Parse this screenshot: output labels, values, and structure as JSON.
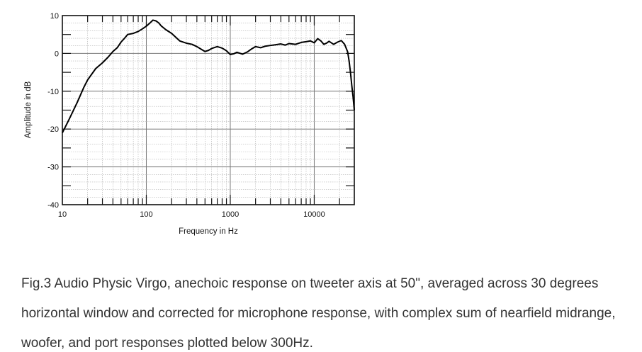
{
  "chart_data": {
    "type": "line",
    "xlabel": "Frequency in Hz",
    "ylabel": "Amplitude in dB",
    "x_scale": "log",
    "xlim": [
      10,
      30000
    ],
    "ylim": [
      -40,
      10
    ],
    "x_ticks": [
      {
        "value": 10,
        "label": "10"
      },
      {
        "value": 100,
        "label": "100"
      },
      {
        "value": 1000,
        "label": "1000"
      },
      {
        "value": 10000,
        "label": "10000"
      }
    ],
    "y_ticks": [
      {
        "value": 10,
        "label": "10"
      },
      {
        "value": 0,
        "label": "0"
      },
      {
        "value": -10,
        "label": "-10"
      },
      {
        "value": -20,
        "label": "-20"
      },
      {
        "value": -30,
        "label": "-30"
      },
      {
        "value": -40,
        "label": "-40"
      }
    ],
    "grid": true,
    "series": [
      {
        "x": [
          10,
          12,
          15,
          18,
          20,
          25,
          30,
          35,
          40,
          45,
          50,
          55,
          60,
          70,
          80,
          90,
          100,
          110,
          120,
          130,
          140,
          150,
          170,
          200,
          250,
          300,
          350,
          400,
          450,
          500,
          550,
          600,
          700,
          800,
          900,
          1000,
          1100,
          1200,
          1400,
          1600,
          1800,
          2000,
          2300,
          2600,
          3000,
          3500,
          4000,
          4500,
          5000,
          6000,
          7000,
          8000,
          9000,
          10000,
          11000,
          12000,
          13000,
          14000,
          15000,
          17000,
          19000,
          21000,
          23000,
          25000,
          26000,
          27000,
          28000,
          29000,
          30000
        ],
        "y": [
          -21,
          -17.5,
          -13,
          -9,
          -7,
          -4,
          -2.5,
          -1,
          0.5,
          1.5,
          3,
          4,
          5,
          5.3,
          5.8,
          6.5,
          7.2,
          8,
          8.8,
          8.6,
          8.1,
          7.3,
          6.3,
          5.3,
          3.3,
          2.7,
          2.4,
          1.8,
          1.1,
          0.5,
          0.8,
          1.3,
          1.8,
          1.4,
          0.7,
          -0.3,
          -0.1,
          0.3,
          -0.2,
          0.4,
          1.2,
          1.8,
          1.5,
          1.9,
          2.1,
          2.3,
          2.5,
          2.2,
          2.6,
          2.4,
          2.9,
          3.1,
          3.3,
          2.8,
          3.9,
          3.3,
          2.4,
          2.7,
          3.2,
          2.4,
          3.0,
          3.4,
          2.4,
          0.4,
          -2.0,
          -5.0,
          -8.5,
          -11.5,
          -15
        ]
      }
    ]
  },
  "caption": {
    "line1": "Fig.3 Audio Physic Virgo, anechoic response on tweeter axis at 50\", averaged across 30 degrees",
    "line2": "horizontal window and corrected for microphone response, with complex sum of nearfield midrange,",
    "line3": "woofer, and port responses plotted below 300Hz."
  }
}
